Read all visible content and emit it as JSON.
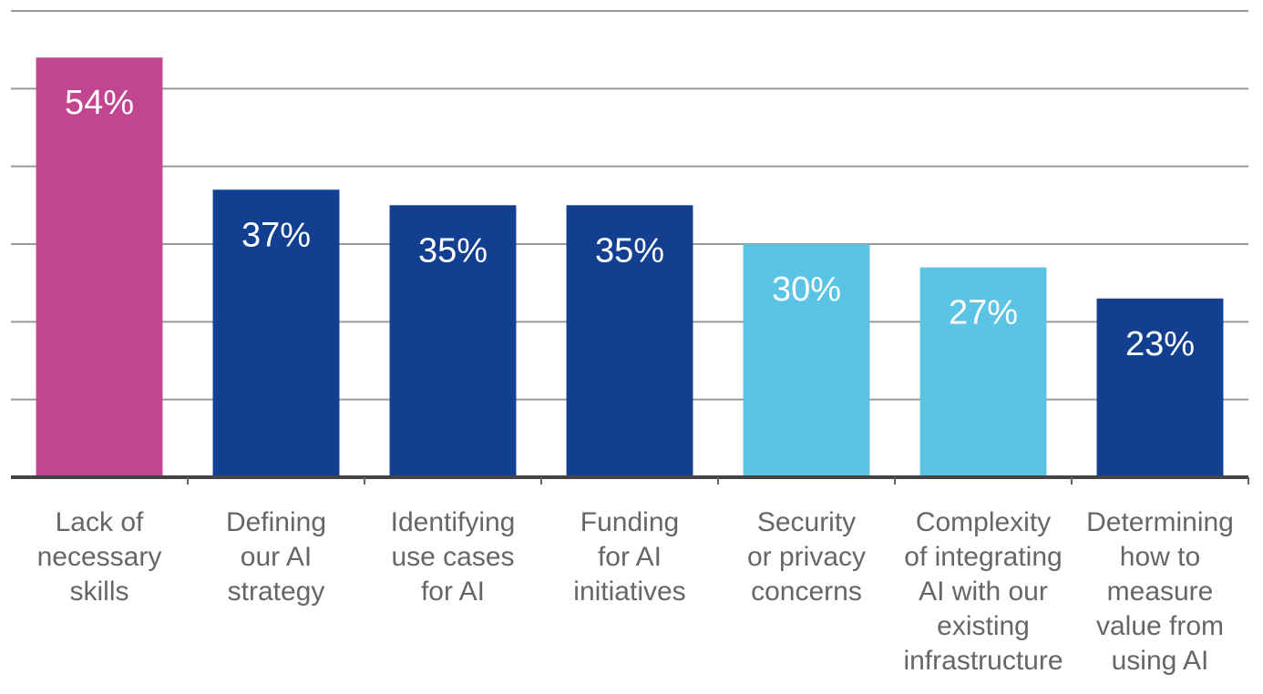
{
  "chart_data": {
    "type": "bar",
    "categories": [
      [
        "Lack of",
        "necessary",
        "skills"
      ],
      [
        "Defining",
        "our AI",
        "strategy"
      ],
      [
        "Identifying",
        "use cases",
        "for AI"
      ],
      [
        "Funding",
        "for AI",
        "initiatives"
      ],
      [
        "Security",
        "or privacy",
        "concerns"
      ],
      [
        "Complexity",
        "of integrating",
        "AI with our",
        "existing",
        "infrastructure"
      ],
      [
        "Determining",
        "how to",
        "measure",
        "value from",
        "using AI"
      ]
    ],
    "values": [
      54,
      37,
      35,
      35,
      30,
      27,
      23
    ],
    "value_labels": [
      "54%",
      "37%",
      "35%",
      "35%",
      "30%",
      "27%",
      "23%"
    ],
    "colors": [
      "#c1468f",
      "#123f8f",
      "#123f8f",
      "#123f8f",
      "#5bc4e4",
      "#5bc4e4",
      "#123f8f"
    ],
    "ylim": [
      0,
      60
    ],
    "yticks": [
      0,
      10,
      20,
      30,
      40,
      50,
      60
    ],
    "grid": true
  }
}
